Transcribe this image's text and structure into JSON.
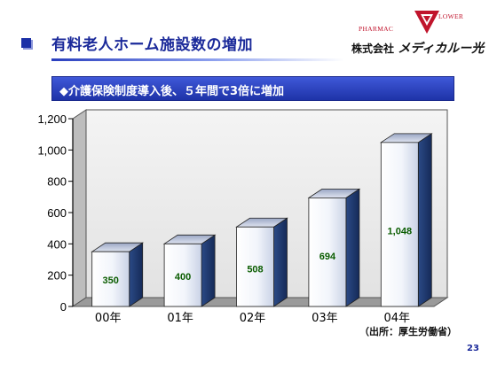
{
  "slide": {
    "title": "有料老人ホーム施設数の増加",
    "subtitle": "◆介護保険制度導入後、５年間で3倍に増加",
    "source": "（出所：厚生労働省）",
    "page_number": "23"
  },
  "logo": {
    "word_left": "PHARMAC",
    "word_right": "LOWER",
    "company_prefix": "株式会社",
    "company_name": "メディカルー光"
  },
  "colors": {
    "accent": "#1b2fa6",
    "bar_front": "#ffffff",
    "bar_shade": "#1e3c78",
    "value_label": "#0a5c00",
    "logo_red": "#c0142c"
  },
  "chart_data": {
    "type": "bar",
    "categories": [
      "00年",
      "01年",
      "02年",
      "03年",
      "04年"
    ],
    "values": [
      350,
      400,
      508,
      694,
      1048
    ],
    "data_labels": [
      "350",
      "400",
      "508",
      "694",
      "1,048"
    ],
    "ylim": [
      0,
      1200
    ],
    "yticks": [
      0,
      200,
      400,
      600,
      800,
      1000,
      1200
    ],
    "ytick_labels": [
      "0",
      "200",
      "400",
      "600",
      "800",
      "1,000",
      "1,200"
    ],
    "grid": false,
    "style": "3d"
  }
}
